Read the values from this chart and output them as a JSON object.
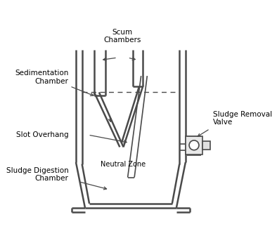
{
  "bg_color": "#ffffff",
  "line_color": "#4a4a4a",
  "lw_main": 1.8,
  "lw_thin": 1.2,
  "labels": {
    "scum": "Scum\nChambers",
    "sedimentation": "Sedimentation\nChamber",
    "slot": "Slot Overhang",
    "sludge_dig": "Sludge Digestion\nChamber",
    "neutral": "Neutral Zone",
    "sludge_valve": "Sludge Removal\nValve"
  },
  "figsize": [
    3.94,
    3.46
  ],
  "dpi": 100
}
